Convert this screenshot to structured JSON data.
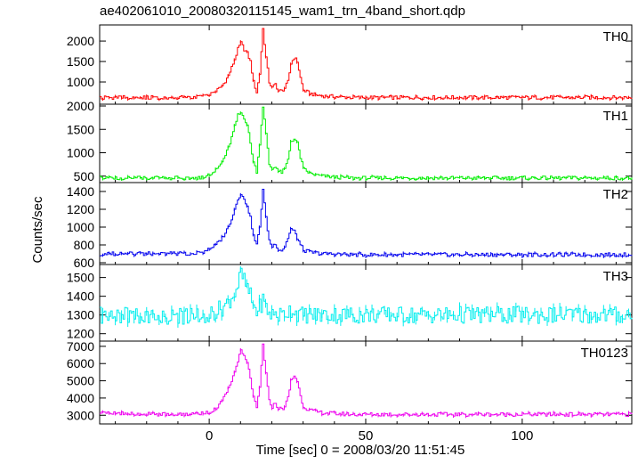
{
  "chart_data": {
    "type": "line",
    "title": "ae402061010_20080320115145_wam1_trn_4band_short.qdp",
    "xlabel": "Time [sec] 0 = 2008/03/20 11:51:45",
    "ylabel": "Counts/sec",
    "xlim": [
      -35,
      135
    ],
    "x_ticks": [
      0,
      50,
      100
    ],
    "panels": [
      {
        "name": "TH0",
        "color": "#ff0000",
        "ylim": [
          500,
          2350
        ],
        "y_ticks": [
          1000,
          1500,
          2000
        ],
        "baseline": 620,
        "x": [
          -35,
          -5,
          -2,
          0,
          2,
          4,
          6,
          8,
          9,
          10,
          11,
          12,
          13,
          14,
          15,
          16,
          17,
          18,
          19,
          20,
          21,
          22,
          23,
          24,
          25,
          26,
          27,
          28,
          29,
          30,
          32,
          34,
          36,
          40,
          45,
          135
        ],
        "values": [
          620,
          620,
          650,
          700,
          780,
          900,
          1150,
          1550,
          1800,
          1950,
          1800,
          1700,
          1500,
          1000,
          750,
          1200,
          2300,
          1600,
          1000,
          850,
          950,
          780,
          780,
          850,
          1000,
          1450,
          1600,
          1500,
          1100,
          800,
          720,
          680,
          660,
          640,
          620,
          620
        ]
      },
      {
        "name": "TH1",
        "color": "#00ee00",
        "ylim": [
          400,
          2000
        ],
        "y_ticks": [
          500,
          1000,
          1500,
          2000
        ],
        "baseline": 460,
        "x": [
          -35,
          -5,
          -2,
          0,
          2,
          4,
          6,
          8,
          9,
          10,
          11,
          12,
          13,
          14,
          15,
          16,
          17,
          18,
          19,
          20,
          21,
          22,
          23,
          24,
          25,
          26,
          27,
          28,
          29,
          30,
          32,
          34,
          36,
          40,
          45,
          135
        ],
        "values": [
          460,
          460,
          480,
          550,
          620,
          800,
          1100,
          1550,
          1800,
          1850,
          1750,
          1600,
          1200,
          800,
          600,
          1200,
          2000,
          1400,
          750,
          650,
          720,
          600,
          580,
          650,
          850,
          1250,
          1300,
          1200,
          900,
          650,
          560,
          520,
          500,
          480,
          460,
          460
        ]
      },
      {
        "name": "TH2",
        "color": "#0000ee",
        "ylim": [
          600,
          1480
        ],
        "y_ticks": [
          600,
          800,
          1000,
          1200,
          1400
        ],
        "baseline": 690,
        "x": [
          -35,
          -5,
          -2,
          0,
          2,
          4,
          6,
          8,
          9,
          10,
          11,
          12,
          13,
          14,
          15,
          16,
          17,
          18,
          19,
          20,
          21,
          22,
          23,
          24,
          25,
          26,
          27,
          28,
          29,
          30,
          32,
          34,
          36,
          40,
          45,
          135
        ],
        "values": [
          700,
          700,
          720,
          760,
          800,
          880,
          1000,
          1200,
          1320,
          1380,
          1300,
          1250,
          1100,
          900,
          800,
          1000,
          1430,
          1100,
          850,
          780,
          820,
          750,
          740,
          780,
          880,
          980,
          950,
          880,
          800,
          740,
          720,
          710,
          700,
          700,
          690,
          690
        ]
      },
      {
        "name": "TH3",
        "color": "#00eeee",
        "ylim": [
          1170,
          1560
        ],
        "y_ticks": [
          1200,
          1300,
          1400,
          1500
        ],
        "baseline": 1300,
        "x": [
          -35,
          -5,
          -2,
          0,
          2,
          4,
          6,
          8,
          9,
          10,
          11,
          12,
          13,
          14,
          15,
          16,
          17,
          18,
          19,
          20,
          21,
          22,
          23,
          24,
          25,
          26,
          27,
          28,
          29,
          30,
          32,
          34,
          36,
          40,
          45,
          135
        ],
        "values": [
          1300,
          1290,
          1300,
          1310,
          1320,
          1340,
          1370,
          1420,
          1460,
          1520,
          1480,
          1440,
          1400,
          1350,
          1320,
          1340,
          1380,
          1340,
          1310,
          1300,
          1310,
          1300,
          1300,
          1310,
          1320,
          1330,
          1320,
          1310,
          1300,
          1300,
          1300,
          1300,
          1300,
          1300,
          1300,
          1300
        ]
      },
      {
        "name": "TH0123",
        "color": "#ee00ee",
        "ylim": [
          2600,
          7200
        ],
        "y_ticks": [
          3000,
          4000,
          5000,
          6000,
          7000
        ],
        "baseline": 3050,
        "x": [
          -35,
          -5,
          -2,
          0,
          2,
          4,
          6,
          8,
          9,
          10,
          11,
          12,
          13,
          14,
          15,
          16,
          17,
          18,
          19,
          20,
          21,
          22,
          23,
          24,
          25,
          26,
          27,
          28,
          29,
          30,
          32,
          34,
          36,
          40,
          45,
          135
        ],
        "values": [
          3100,
          3050,
          3100,
          3200,
          3400,
          3800,
          4500,
          5500,
          6200,
          6700,
          6400,
          6000,
          5200,
          4000,
          3400,
          4600,
          7100,
          5400,
          3800,
          3500,
          3700,
          3400,
          3350,
          3500,
          4000,
          5000,
          5300,
          5000,
          4100,
          3500,
          3300,
          3200,
          3150,
          3100,
          3050,
          3050
        ]
      }
    ]
  }
}
